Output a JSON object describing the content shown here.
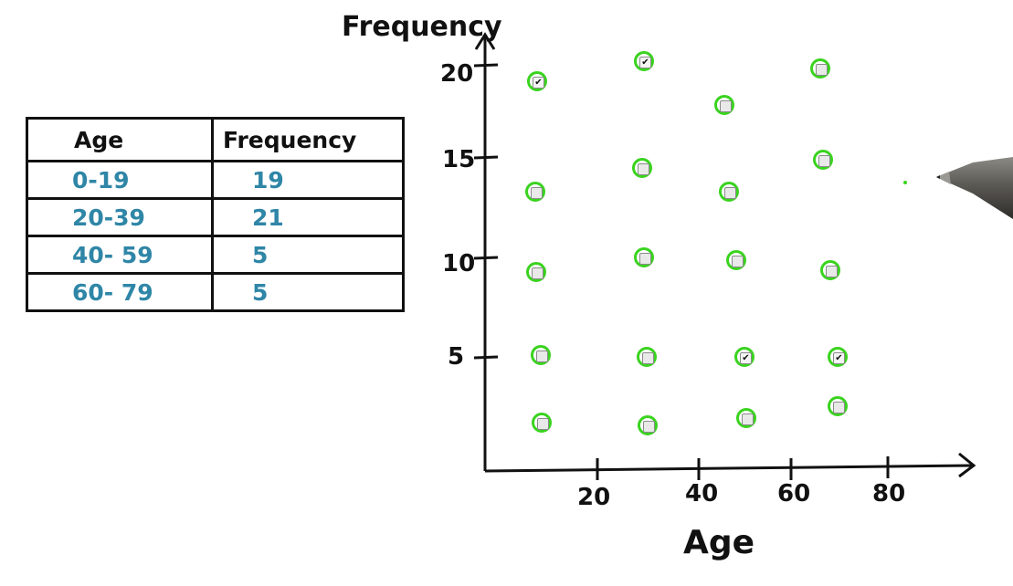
{
  "table": {
    "headers": [
      "Age",
      "Frequency"
    ],
    "rows": [
      {
        "age": "0-19",
        "frequency": "19"
      },
      {
        "age": "20-39",
        "frequency": "21"
      },
      {
        "age": "40- 59",
        "frequency": "5"
      },
      {
        "age": "60- 79",
        "frequency": "5"
      }
    ]
  },
  "chart": {
    "y_title": "Frequency",
    "x_title": "Age",
    "y_ticks": [
      "5",
      "10",
      "15",
      "20"
    ],
    "x_ticks": [
      "20",
      "40",
      "60",
      "80"
    ],
    "checkmark": "✔",
    "checked_boxes": [
      "20-39 at 21",
      "0-19 at 19",
      "40-59 at 5",
      "60-79 at 5"
    ],
    "accent_color": "#3ad31f",
    "table_value_color": "#2f86a7"
  }
}
